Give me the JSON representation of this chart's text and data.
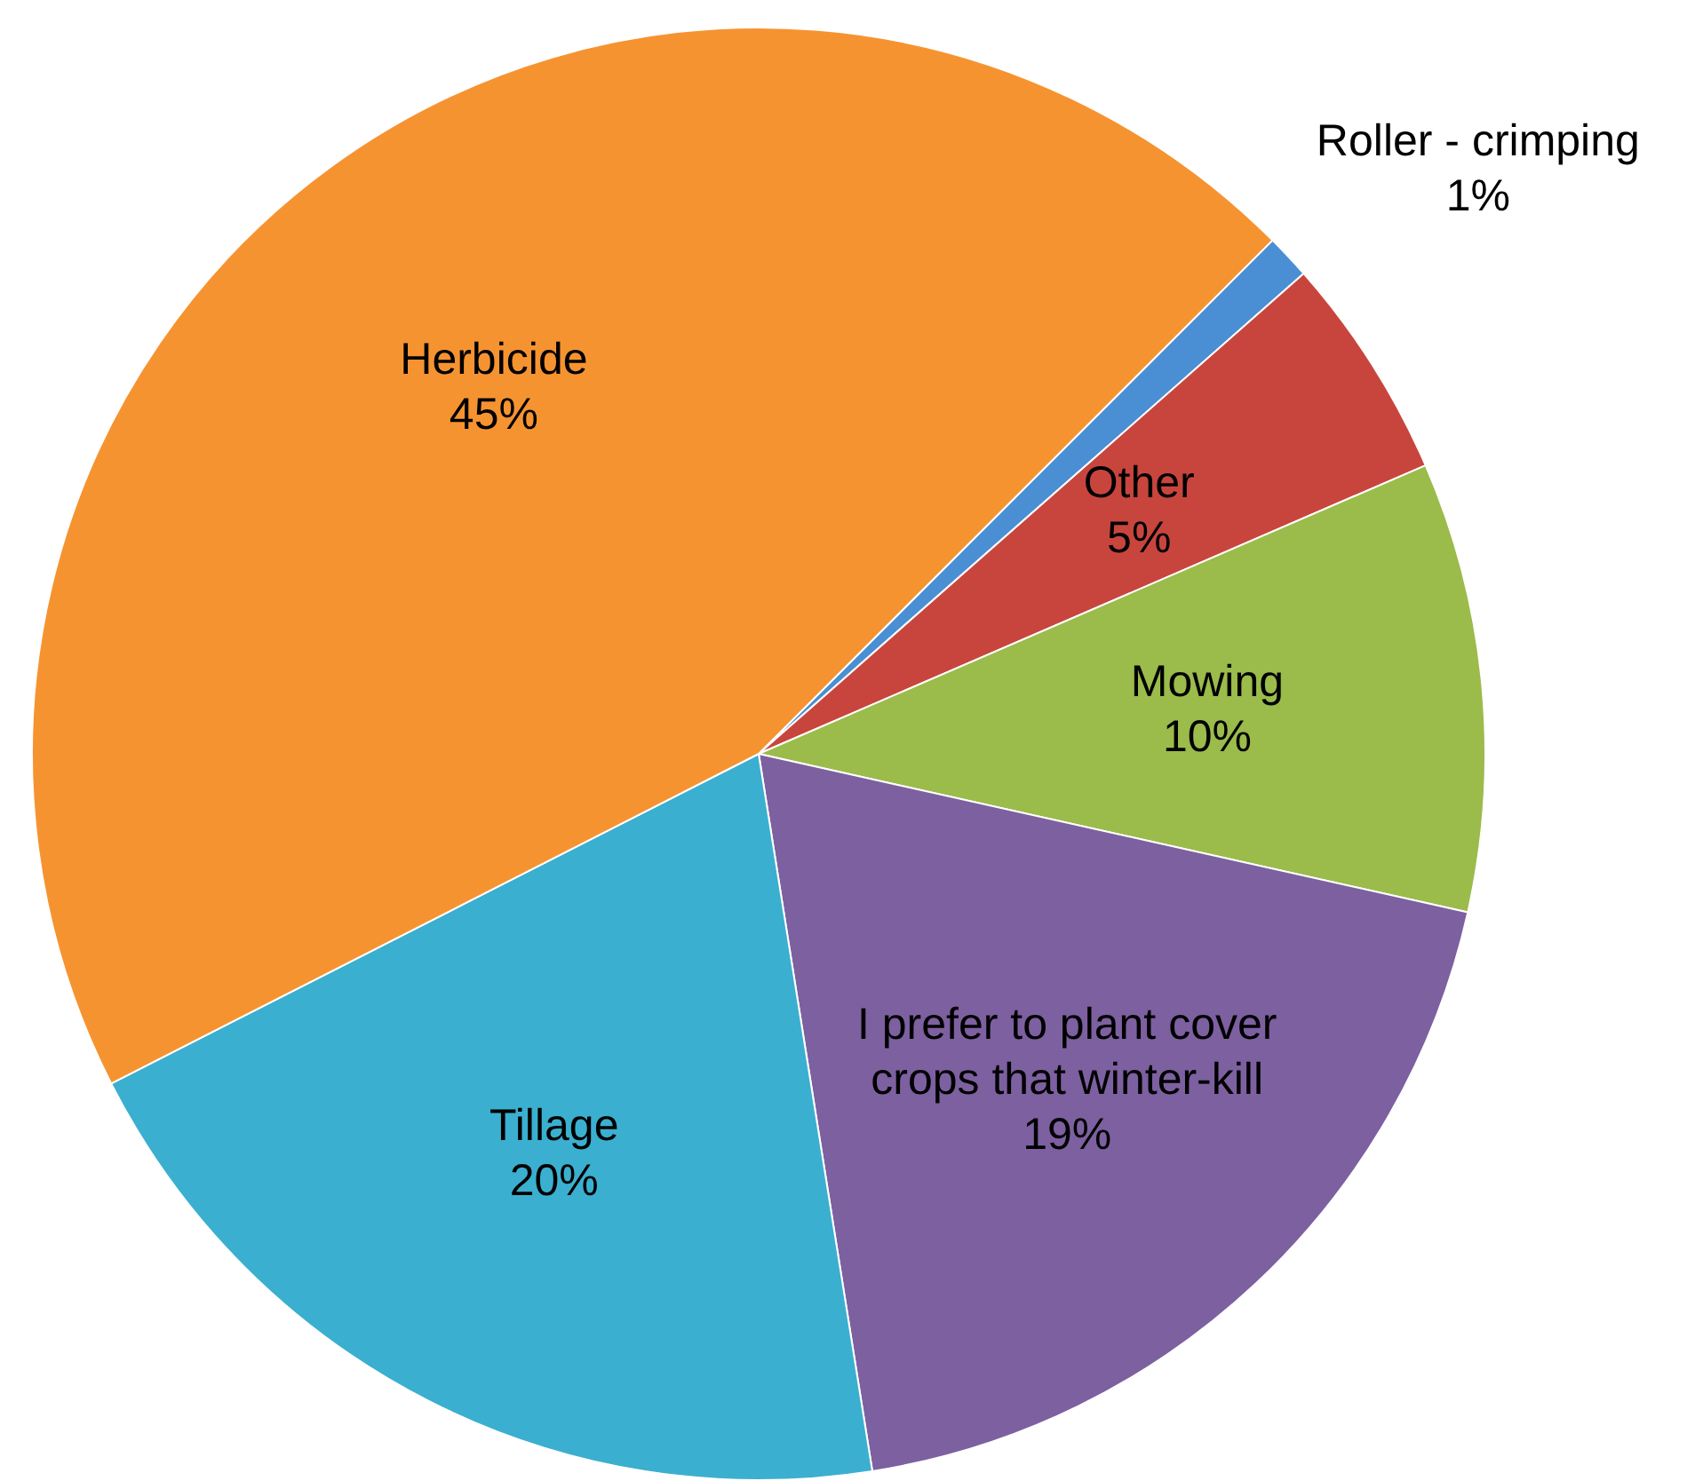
{
  "chart_data": {
    "type": "pie",
    "categories": [
      "Roller - crimping",
      "Other",
      "Mowing",
      "I prefer to plant cover crops that winter-kill",
      "Tillage",
      "Herbicide"
    ],
    "values": [
      1,
      5,
      10,
      19,
      20,
      45
    ],
    "colors": [
      "#4a8fd3",
      "#c8453e",
      "#9bbb4b",
      "#7d60a0",
      "#3bafcf",
      "#f69331"
    ],
    "value_labels": [
      "1%",
      "5%",
      "10%",
      "19%",
      "20%",
      "45%"
    ],
    "legend": false
  }
}
